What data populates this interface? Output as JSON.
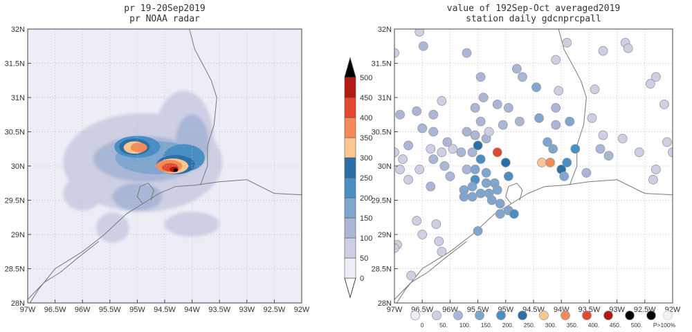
{
  "colors": {
    "scale": [
      "#ededf5",
      "#cdcfe4",
      "#a9b6d6",
      "#7fa6cf",
      "#4a8fc4",
      "#2b6fa6",
      "#fdc590",
      "#f48b58",
      "#e2492f",
      "#b01a10",
      "#000000"
    ],
    "coast": "#777777",
    "grid": "#c0c0c0",
    "station_edge": "#999999"
  },
  "chart_data": [
    {
      "type": "heatmap",
      "title": "pr 19-20Sep2019",
      "subtitle": "pr NOAA radar",
      "xlim": [
        -97,
        -92
      ],
      "ylim": [
        28,
        32
      ],
      "x_ticks": [
        "97W",
        "96.5W",
        "96W",
        "95.5W",
        "95W",
        "94.5W",
        "94W",
        "93.5W",
        "93W",
        "92.5W",
        "92W"
      ],
      "y_ticks": [
        "28N",
        "28.5N",
        "29N",
        "29.5N",
        "30N",
        "30.5N",
        "31N",
        "31.5N",
        "32N"
      ],
      "grid": true,
      "colorbar_levels": [
        "0",
        "50",
        "100",
        "150",
        "200",
        "250",
        "300",
        "350",
        "400",
        "450",
        "500"
      ],
      "blobs": [
        {
          "lon": -94.9,
          "lat": 30.05,
          "rx": 1.45,
          "ry": 0.72,
          "level": 0
        },
        {
          "lon": -94.15,
          "lat": 30.35,
          "rx": 0.55,
          "ry": 0.75,
          "level": 0
        },
        {
          "lon": -94.0,
          "lat": 29.15,
          "rx": 0.5,
          "ry": 0.18,
          "level": 0
        },
        {
          "lon": -95.45,
          "lat": 29.1,
          "rx": 0.3,
          "ry": 0.22,
          "level": 0
        },
        {
          "lon": -96.0,
          "lat": 29.6,
          "rx": 0.35,
          "ry": 0.25,
          "level": 0
        },
        {
          "lon": -94.85,
          "lat": 30.1,
          "rx": 0.95,
          "ry": 0.33,
          "level": 1
        },
        {
          "lon": -94.0,
          "lat": 30.35,
          "rx": 0.3,
          "ry": 0.4,
          "level": 1
        },
        {
          "lon": -95.0,
          "lat": 29.55,
          "rx": 0.45,
          "ry": 0.2,
          "level": 1
        },
        {
          "lon": -94.65,
          "lat": 30.12,
          "rx": 0.75,
          "ry": 0.24,
          "level": 2
        },
        {
          "lon": -95.0,
          "lat": 30.28,
          "rx": 0.42,
          "ry": 0.16,
          "level": 3
        },
        {
          "lon": -94.15,
          "lat": 30.12,
          "rx": 0.38,
          "ry": 0.2,
          "level": 3
        },
        {
          "lon": -95.05,
          "lat": 30.28,
          "rx": 0.28,
          "ry": 0.12,
          "level": 4
        },
        {
          "lon": -94.3,
          "lat": 30.02,
          "rx": 0.35,
          "ry": 0.14,
          "level": 4
        },
        {
          "lon": -95.05,
          "lat": 30.27,
          "rx": 0.2,
          "ry": 0.09,
          "level": 5
        },
        {
          "lon": -94.35,
          "lat": 30.0,
          "rx": 0.28,
          "ry": 0.11,
          "level": 5
        },
        {
          "lon": -94.97,
          "lat": 30.27,
          "rx": 0.15,
          "ry": 0.07,
          "level": 6
        },
        {
          "lon": -94.42,
          "lat": 30.0,
          "rx": 0.24,
          "ry": 0.09,
          "level": 6
        },
        {
          "lon": -94.4,
          "lat": 29.98,
          "rx": 0.15,
          "ry": 0.06,
          "level": 7
        },
        {
          "lon": -94.33,
          "lat": 29.95,
          "rx": 0.08,
          "ry": 0.04,
          "level": 8
        },
        {
          "lon": -94.3,
          "lat": 29.94,
          "rx": 0.04,
          "ry": 0.025,
          "level": 9
        }
      ]
    },
    {
      "type": "scatter",
      "title": "value of 192Sep-Oct averaged2019",
      "subtitle": "station daily gdcnprcpall",
      "xlim": [
        -97,
        -92
      ],
      "ylim": [
        28,
        32
      ],
      "x_ticks": [
        "97W",
        "96.5W",
        "96W",
        "95.5W",
        "95W",
        "94.5W",
        "94W",
        "93.5W",
        "93W",
        "92.5W",
        "92W"
      ],
      "y_ticks": [
        "28N",
        "28.5N",
        "29N",
        "29.5N",
        "30N",
        "30.5N",
        "31N",
        "31.5N",
        "32N"
      ],
      "grid": true,
      "legend_labels": [
        "0",
        "50.",
        "100.",
        "150.",
        "200.",
        "250.",
        "300.",
        "350.",
        "400.",
        "450.",
        "500."
      ],
      "legend_extra": "P>100%",
      "stations": [
        [
          -96.55,
          31.96,
          0
        ],
        [
          -97.0,
          31.65,
          0
        ],
        [
          -96.48,
          31.75,
          1
        ],
        [
          -95.7,
          31.65,
          1
        ],
        [
          -95.45,
          31.3,
          1
        ],
        [
          -94.7,
          31.3,
          1
        ],
        [
          -94.8,
          31.42,
          1
        ],
        [
          -94.1,
          31.55,
          0
        ],
        [
          -93.9,
          31.8,
          0
        ],
        [
          -93.25,
          31.68,
          0
        ],
        [
          -92.85,
          31.8,
          0
        ],
        [
          -92.8,
          31.72,
          0
        ],
        [
          -92.3,
          31.3,
          0
        ],
        [
          -92.4,
          31.2,
          0
        ],
        [
          -92.15,
          30.9,
          0
        ],
        [
          -94.45,
          31.15,
          2
        ],
        [
          -94.05,
          31.1,
          0
        ],
        [
          -93.4,
          31.12,
          0
        ],
        [
          -96.15,
          30.95,
          0
        ],
        [
          -96.6,
          30.8,
          1
        ],
        [
          -96.3,
          30.75,
          1
        ],
        [
          -95.55,
          30.85,
          1
        ],
        [
          -95.4,
          31.0,
          1
        ],
        [
          -95.15,
          30.9,
          1
        ],
        [
          -94.95,
          30.85,
          1
        ],
        [
          -94.75,
          30.65,
          1
        ],
        [
          -95.05,
          30.6,
          1
        ],
        [
          -95.45,
          30.65,
          1
        ],
        [
          -95.7,
          30.5,
          1
        ],
        [
          -96.5,
          30.55,
          1
        ],
        [
          -96.9,
          30.75,
          1
        ],
        [
          -97.0,
          30.2,
          0
        ],
        [
          -96.75,
          30.3,
          1
        ],
        [
          -96.3,
          30.5,
          1
        ],
        [
          -94.1,
          30.85,
          1
        ],
        [
          -94.1,
          30.6,
          1
        ],
        [
          -93.85,
          30.65,
          2
        ],
        [
          -93.45,
          30.7,
          0
        ],
        [
          -93.25,
          30.45,
          0
        ],
        [
          -92.9,
          30.4,
          0
        ],
        [
          -92.6,
          30.2,
          0
        ],
        [
          -92.0,
          30.2,
          0
        ],
        [
          -92.1,
          30.35,
          0
        ],
        [
          -92.3,
          29.95,
          0
        ],
        [
          -92.35,
          29.8,
          0
        ],
        [
          -93.15,
          30.15,
          1
        ],
        [
          -93.3,
          30.25,
          1
        ],
        [
          -93.55,
          29.9,
          1
        ],
        [
          -94.4,
          30.7,
          2
        ],
        [
          -94.25,
          30.35,
          2
        ],
        [
          -94.15,
          30.25,
          2
        ],
        [
          -93.75,
          30.25,
          3
        ],
        [
          -93.9,
          30.05,
          3
        ],
        [
          -94.0,
          29.95,
          4
        ],
        [
          -93.95,
          29.85,
          2
        ],
        [
          -94.35,
          30.05,
          5
        ],
        [
          -94.2,
          30.05,
          6
        ],
        [
          -95.15,
          30.2,
          7
        ],
        [
          -95.6,
          30.2,
          1
        ],
        [
          -95.5,
          30.3,
          4
        ],
        [
          -95.8,
          30.2,
          1
        ],
        [
          -95.45,
          30.1,
          3
        ],
        [
          -95.7,
          29.95,
          1
        ],
        [
          -95.55,
          29.95,
          2
        ],
        [
          -95.35,
          29.9,
          2
        ],
        [
          -95.0,
          30.05,
          4
        ],
        [
          -94.95,
          29.85,
          3
        ],
        [
          -95.2,
          29.75,
          2
        ],
        [
          -95.35,
          29.75,
          2
        ],
        [
          -95.55,
          29.8,
          3
        ],
        [
          -95.6,
          29.7,
          2
        ],
        [
          -95.75,
          29.65,
          2
        ],
        [
          -95.75,
          29.55,
          2
        ],
        [
          -95.6,
          29.55,
          2
        ],
        [
          -95.45,
          29.6,
          2
        ],
        [
          -95.3,
          29.6,
          2
        ],
        [
          -95.15,
          29.65,
          2
        ],
        [
          -95.25,
          29.5,
          2
        ],
        [
          -95.1,
          29.45,
          2
        ],
        [
          -94.95,
          29.35,
          2
        ],
        [
          -94.85,
          29.3,
          3
        ],
        [
          -95.1,
          29.3,
          2
        ],
        [
          -95.5,
          29.05,
          2
        ],
        [
          -96.75,
          29.8,
          0
        ],
        [
          -96.55,
          29.95,
          0
        ],
        [
          -96.3,
          30.1,
          1
        ],
        [
          -96.1,
          30.0,
          1
        ],
        [
          -96.0,
          29.85,
          1
        ],
        [
          -96.35,
          29.7,
          1
        ],
        [
          -96.6,
          29.2,
          0
        ],
        [
          -96.25,
          29.15,
          0
        ],
        [
          -96.15,
          28.75,
          0
        ],
        [
          -96.95,
          28.85,
          0
        ],
        [
          -97.0,
          28.8,
          0
        ],
        [
          -96.7,
          28.4,
          0
        ],
        [
          -96.5,
          29.0,
          0
        ],
        [
          -96.2,
          28.9,
          0
        ],
        [
          -95.95,
          30.25,
          0
        ],
        [
          -96.05,
          30.35,
          1
        ],
        [
          -96.85,
          30.1,
          0
        ],
        [
          -96.9,
          29.95,
          0
        ],
        [
          -96.35,
          30.25,
          0
        ],
        [
          -96.15,
          30.2,
          0
        ],
        [
          -95.35,
          30.4,
          1
        ],
        [
          -95.55,
          30.45,
          1
        ],
        [
          -95.3,
          30.5,
          0
        ]
      ]
    }
  ]
}
